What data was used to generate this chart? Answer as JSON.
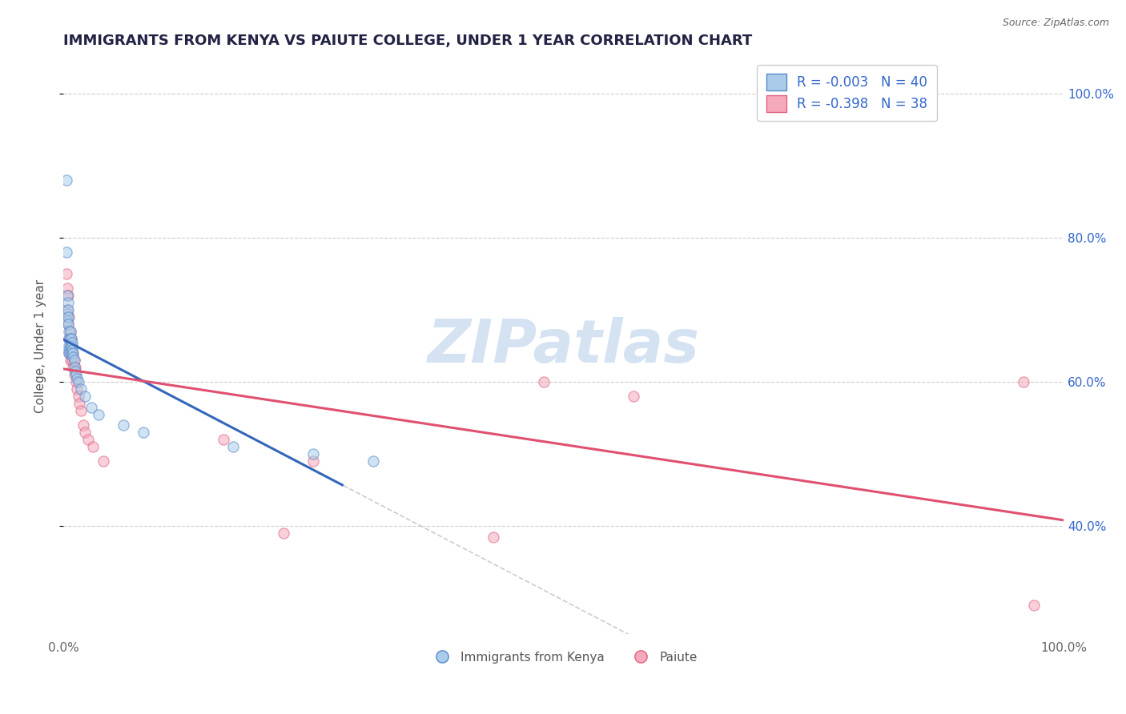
{
  "title": "IMMIGRANTS FROM KENYA VS PAIUTE COLLEGE, UNDER 1 YEAR CORRELATION CHART",
  "source": "Source: ZipAtlas.com",
  "ylabel": "College, Under 1 year",
  "legend_label_blue": "Immigrants from Kenya",
  "legend_label_pink": "Paiute",
  "legend_r_blue": "R = -0.003",
  "legend_n_blue": "N = 40",
  "legend_r_pink": "R = -0.398",
  "legend_n_pink": "N = 38",
  "blue_fill": "#AACCE8",
  "pink_fill": "#F4AABB",
  "blue_edge": "#5588CC",
  "pink_edge": "#E06080",
  "blue_line": "#3366BB",
  "pink_line": "#E05070",
  "title_color": "#222244",
  "legend_text_color": "#3366CC",
  "grid_color": "#CCCCCC",
  "bg": "#FFFFFF",
  "blue_x": [
    0.003,
    0.003,
    0.004,
    0.004,
    0.004,
    0.005,
    0.005,
    0.005,
    0.005,
    0.006,
    0.006,
    0.006,
    0.006,
    0.006,
    0.007,
    0.007,
    0.007,
    0.007,
    0.008,
    0.008,
    0.008,
    0.009,
    0.009,
    0.01,
    0.01,
    0.011,
    0.011,
    0.012,
    0.013,
    0.014,
    0.015,
    0.018,
    0.022,
    0.028,
    0.035,
    0.06,
    0.08,
    0.17,
    0.25,
    0.31
  ],
  "blue_y": [
    0.88,
    0.78,
    0.72,
    0.695,
    0.685,
    0.71,
    0.7,
    0.69,
    0.68,
    0.67,
    0.66,
    0.65,
    0.645,
    0.64,
    0.67,
    0.66,
    0.65,
    0.64,
    0.66,
    0.65,
    0.64,
    0.655,
    0.645,
    0.64,
    0.635,
    0.63,
    0.62,
    0.615,
    0.61,
    0.605,
    0.6,
    0.59,
    0.58,
    0.565,
    0.555,
    0.54,
    0.53,
    0.51,
    0.5,
    0.49
  ],
  "pink_x": [
    0.003,
    0.004,
    0.004,
    0.005,
    0.005,
    0.006,
    0.006,
    0.006,
    0.007,
    0.007,
    0.007,
    0.008,
    0.008,
    0.009,
    0.009,
    0.01,
    0.01,
    0.011,
    0.011,
    0.012,
    0.013,
    0.014,
    0.015,
    0.016,
    0.018,
    0.02,
    0.022,
    0.025,
    0.03,
    0.04,
    0.16,
    0.22,
    0.25,
    0.43,
    0.48,
    0.57,
    0.96,
    0.97
  ],
  "pink_y": [
    0.75,
    0.73,
    0.7,
    0.72,
    0.68,
    0.69,
    0.66,
    0.64,
    0.67,
    0.65,
    0.63,
    0.66,
    0.64,
    0.65,
    0.63,
    0.64,
    0.62,
    0.63,
    0.61,
    0.62,
    0.6,
    0.59,
    0.58,
    0.57,
    0.56,
    0.54,
    0.53,
    0.52,
    0.51,
    0.49,
    0.52,
    0.39,
    0.49,
    0.385,
    0.6,
    0.58,
    0.6,
    0.29
  ],
  "xlim": [
    0.0,
    1.0
  ],
  "ylim": [
    0.25,
    1.05
  ],
  "y_ticks": [
    0.4,
    0.6,
    0.8,
    1.0
  ],
  "y_tick_labels": [
    "40.0%",
    "60.0%",
    "80.0%",
    "100.0%"
  ],
  "watermark_text": "ZIPatlas",
  "watermark_color": "#B8D0EA",
  "marker_size": 90,
  "marker_alpha": 0.55,
  "title_fontsize": 13,
  "label_fontsize": 11,
  "legend_fontsize": 12
}
